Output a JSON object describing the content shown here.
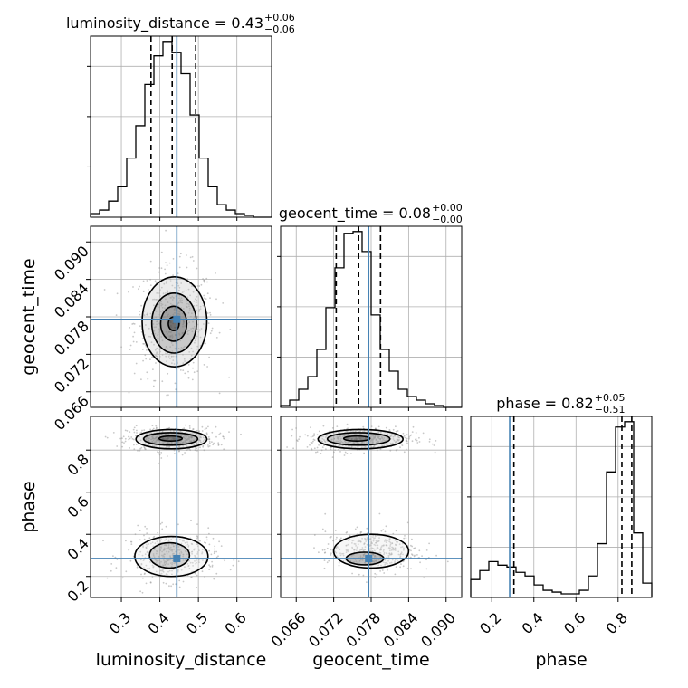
{
  "chart_data": {
    "type": "corner",
    "parameters": [
      "luminosity_distance",
      "geocent_time",
      "phase"
    ],
    "axis_labels": {
      "luminosity_distance": "luminosity_distance",
      "geocent_time": "geocent_time",
      "phase": "phase"
    },
    "ranges": {
      "luminosity_distance": [
        0.22,
        0.69
      ],
      "geocent_time": [
        0.0635,
        0.0925
      ],
      "phase": [
        0.1,
        0.96
      ]
    },
    "ticks": {
      "luminosity_distance": [
        "0.3",
        "0.4",
        "0.5",
        "0.6"
      ],
      "geocent_time": [
        "0.066",
        "0.072",
        "0.078",
        "0.084",
        "0.090"
      ],
      "phase": [
        "0.2",
        "0.4",
        "0.6",
        "0.8"
      ]
    },
    "truths": {
      "luminosity_distance": 0.444,
      "geocent_time": 0.0776,
      "phase": 0.285
    },
    "titles": [
      {
        "param": "luminosity_distance",
        "name": "luminosity_distance",
        "median": "0.43",
        "plus": "+0.06",
        "minus": "−0.06"
      },
      {
        "param": "geocent_time",
        "name": "geocent_time",
        "median": "0.08",
        "plus": "+0.00",
        "minus": "−0.00"
      },
      {
        "param": "phase",
        "name": "phase",
        "median": "0.82",
        "plus": "+0.05",
        "minus": "−0.51"
      }
    ],
    "quantiles": {
      "luminosity_distance": [
        0.377,
        0.432,
        0.493
      ],
      "geocent_time": [
        0.0724,
        0.076,
        0.0795
      ],
      "phase": [
        0.305,
        0.818,
        0.865
      ]
    },
    "histograms": {
      "luminosity_distance": {
        "edges": [
          0.22,
          0.2435,
          0.267,
          0.2905,
          0.314,
          0.3375,
          0.361,
          0.3845,
          0.408,
          0.4315,
          0.455,
          0.4785,
          0.502,
          0.5255,
          0.549,
          0.5725,
          0.596,
          0.6195,
          0.643,
          0.6665,
          0.69
        ],
        "counts": [
          2,
          4,
          9,
          17,
          33,
          51,
          74,
          90,
          98,
          92,
          80,
          57,
          33,
          17,
          7,
          4,
          2,
          1,
          0,
          0
        ]
      },
      "geocent_time": {
        "edges": [
          0.0635,
          0.06495,
          0.0664,
          0.06785,
          0.0693,
          0.07075,
          0.0722,
          0.07365,
          0.0751,
          0.07655,
          0.078,
          0.07945,
          0.0809,
          0.08235,
          0.0838,
          0.08525,
          0.0867,
          0.08815,
          0.0896,
          0.09105,
          0.0925
        ],
        "counts": [
          1,
          4,
          10,
          17,
          32,
          55,
          77,
          96,
          97,
          86,
          51,
          32,
          20,
          10,
          6,
          4,
          2,
          1,
          0,
          0
        ]
      },
      "phase": {
        "edges": [
          0.1,
          0.143,
          0.186,
          0.229,
          0.272,
          0.315,
          0.358,
          0.401,
          0.444,
          0.487,
          0.53,
          0.573,
          0.616,
          0.659,
          0.702,
          0.745,
          0.788,
          0.831,
          0.874,
          0.917,
          0.96
        ],
        "counts": [
          10,
          15,
          20,
          18,
          17,
          14,
          12,
          7,
          4,
          3,
          2,
          2,
          4,
          12,
          30,
          70,
          95,
          98,
          36,
          8
        ]
      }
    },
    "contours_2d": [
      {
        "x": "luminosity_distance",
        "y": "geocent_time",
        "levels": [
          {
            "cx": 0.436,
            "cy": 0.0769,
            "rx": 0.014,
            "ry": 0.0011
          },
          {
            "cx": 0.436,
            "cy": 0.0769,
            "rx": 0.034,
            "ry": 0.0028
          },
          {
            "cx": 0.437,
            "cy": 0.077,
            "rx": 0.058,
            "ry": 0.0048
          },
          {
            "cx": 0.438,
            "cy": 0.0772,
            "rx": 0.084,
            "ry": 0.0072
          }
        ]
      },
      {
        "x": "luminosity_distance",
        "y": "phase",
        "levels": [
          {
            "cx": 0.428,
            "cy": 0.855,
            "rx": 0.03,
            "ry": 0.012
          },
          {
            "cx": 0.428,
            "cy": 0.853,
            "rx": 0.07,
            "ry": 0.03
          },
          {
            "cx": 0.43,
            "cy": 0.852,
            "rx": 0.092,
            "ry": 0.046
          },
          {
            "cx": 0.425,
            "cy": 0.3,
            "rx": 0.052,
            "ry": 0.06
          },
          {
            "cx": 0.43,
            "cy": 0.295,
            "rx": 0.095,
            "ry": 0.095
          }
        ]
      },
      {
        "x": "geocent_time",
        "y": "phase",
        "levels": [
          {
            "cx": 0.0757,
            "cy": 0.855,
            "rx": 0.0021,
            "ry": 0.012
          },
          {
            "cx": 0.076,
            "cy": 0.853,
            "rx": 0.005,
            "ry": 0.03
          },
          {
            "cx": 0.0763,
            "cy": 0.852,
            "rx": 0.0068,
            "ry": 0.046
          },
          {
            "cx": 0.077,
            "cy": 0.285,
            "rx": 0.003,
            "ry": 0.03
          },
          {
            "cx": 0.078,
            "cy": 0.32,
            "rx": 0.006,
            "ry": 0.08
          }
        ]
      }
    ],
    "grid": true,
    "colors": {
      "truth": "#4682b4",
      "hist": "#000000",
      "contour": "#000000",
      "points": "#9a9a9a",
      "grid": "#b0b0b0"
    }
  }
}
